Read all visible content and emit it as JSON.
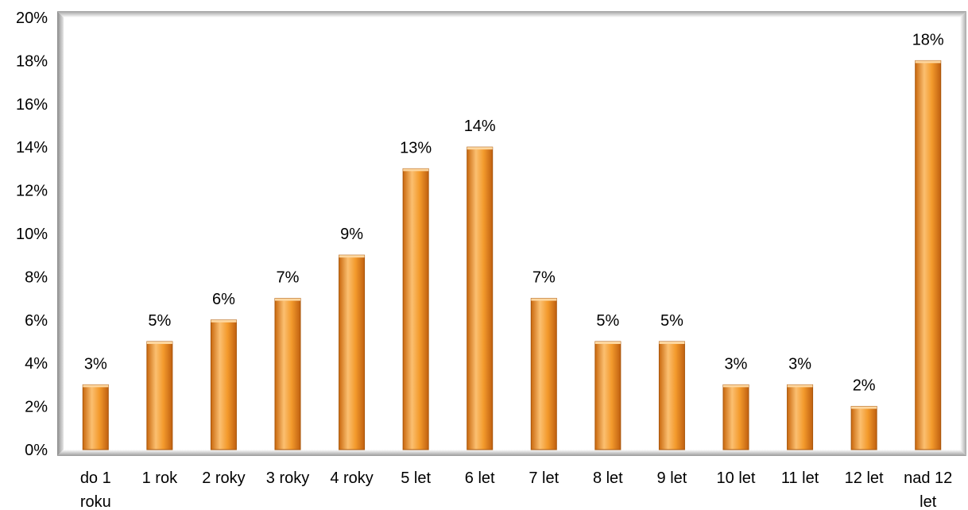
{
  "chart_data": {
    "type": "bar",
    "title": "",
    "xlabel": "",
    "ylabel": "",
    "categories": [
      [
        "do 1",
        "roku"
      ],
      [
        "1 rok"
      ],
      [
        "2 roky"
      ],
      [
        "3 roky"
      ],
      [
        "4 roky"
      ],
      [
        "5 let"
      ],
      [
        "6 let"
      ],
      [
        "7 let"
      ],
      [
        "8 let"
      ],
      [
        "9 let"
      ],
      [
        "10 let"
      ],
      [
        "11 let"
      ],
      [
        "12 let"
      ],
      [
        "nad 12",
        "let"
      ]
    ],
    "values": [
      3,
      5,
      6,
      7,
      9,
      13,
      14,
      7,
      5,
      5,
      3,
      3,
      2,
      18
    ],
    "data_labels": [
      "3%",
      "5%",
      "6%",
      "7%",
      "9%",
      "13%",
      "14%",
      "7%",
      "5%",
      "5%",
      "3%",
      "3%",
      "2%",
      "18%"
    ],
    "ylim": [
      0,
      20
    ],
    "yticks": [
      0,
      2,
      4,
      6,
      8,
      10,
      12,
      14,
      16,
      18,
      20
    ],
    "ytick_labels": [
      "0%",
      "2%",
      "4%",
      "6%",
      "8%",
      "10%",
      "12%",
      "14%",
      "16%",
      "18%",
      "20%"
    ],
    "grid": false,
    "legend": "none",
    "colors": {
      "bar": "#F28A1E",
      "bar_highlight": "#FBC27A",
      "bar_shadow": "#B85E0A"
    }
  }
}
